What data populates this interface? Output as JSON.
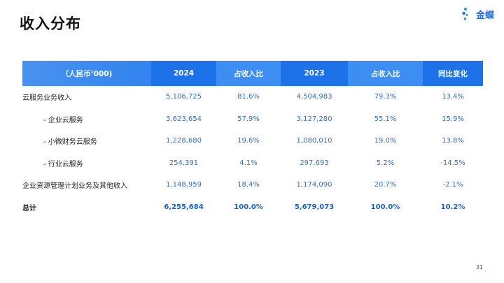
{
  "title": "收入分布",
  "logo": {
    "text": "金蝶",
    "icon": "kingdee-logo-icon"
  },
  "table": {
    "headers": [
      "（人民币‘000)",
      "2024",
      "占收入比",
      "2023",
      "占收入比",
      "同比变化"
    ],
    "rows": [
      {
        "label": "云服务业务收入",
        "v2024": "5,106,725",
        "p2024": "81.6%",
        "v2023": "4,504,983",
        "p2023": "79.3%",
        "yoy": "13.4%"
      },
      {
        "label": "- 企业云服务",
        "v2024": "3,623,654",
        "p2024": "57.9%",
        "v2023": "3,127,280",
        "p2023": "55.1%",
        "yoy": "15.9%"
      },
      {
        "label": "- 小微财务云服务",
        "v2024": "1,228,680",
        "p2024": "19.6%",
        "v2023": "1,080,010",
        "p2023": "19.0%",
        "yoy": "13.8%"
      },
      {
        "label": "- 行业云服务",
        "v2024": "254,391",
        "p2024": "4.1%",
        "v2023": "297,693",
        "p2023": "5.2%",
        "yoy": "-14.5%"
      },
      {
        "label": "企业资源管理计划业务及其他收入",
        "v2024": "1,148,959",
        "p2024": "18.4%",
        "v2023": "1,174,090",
        "p2023": "20.7%",
        "yoy": "-2.1%"
      },
      {
        "label": "总计",
        "v2024": "6,255,684",
        "p2024": "100.0%",
        "v2023": "5,679,073",
        "p2023": "100.0%",
        "yoy": "10.2%"
      }
    ]
  },
  "page_number": "31"
}
